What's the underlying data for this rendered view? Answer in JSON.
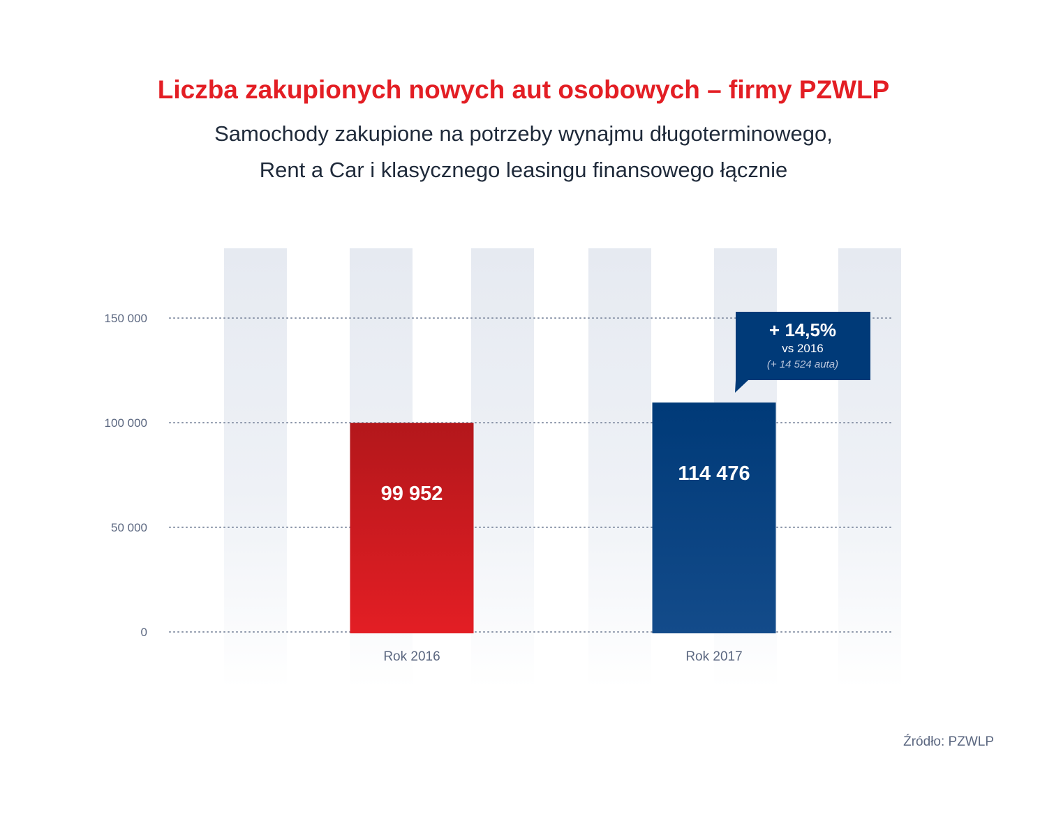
{
  "title": "Liczba zakupionych nowych aut osobowych – firmy PZWLP",
  "subtitle_lines": [
    "Samochody zakupione na potrzeby wynajmu długoterminowego,",
    "Rent a Car i klasycznego leasingu finansowego łącznie"
  ],
  "source": "Źródło: PZWLP",
  "colors": {
    "title": "#e31e24",
    "bar_2016_top": "#b3171b",
    "bar_2016_bottom": "#e31e24",
    "bar_2017_top": "#003a78",
    "bar_2017_bottom": "#134b8a",
    "callout": "#003a78",
    "stripe": "#e6eaf1"
  },
  "chart_data": {
    "type": "bar",
    "categories": [
      "Rok 2016",
      "Rok 2017"
    ],
    "values": [
      99952,
      114476
    ],
    "value_labels": [
      "99 952",
      "114 476"
    ],
    "ylim": [
      0,
      150000
    ],
    "yticks": [
      0,
      50000,
      100000,
      150000
    ],
    "ytick_labels": [
      "0",
      "50 000",
      "100 000",
      "150 000"
    ],
    "grid": true,
    "annotation": {
      "category": "Rok 2017",
      "headline": "+ 14,5%",
      "line2": "vs 2016",
      "line3": "(+ 14 524 auta)"
    }
  }
}
